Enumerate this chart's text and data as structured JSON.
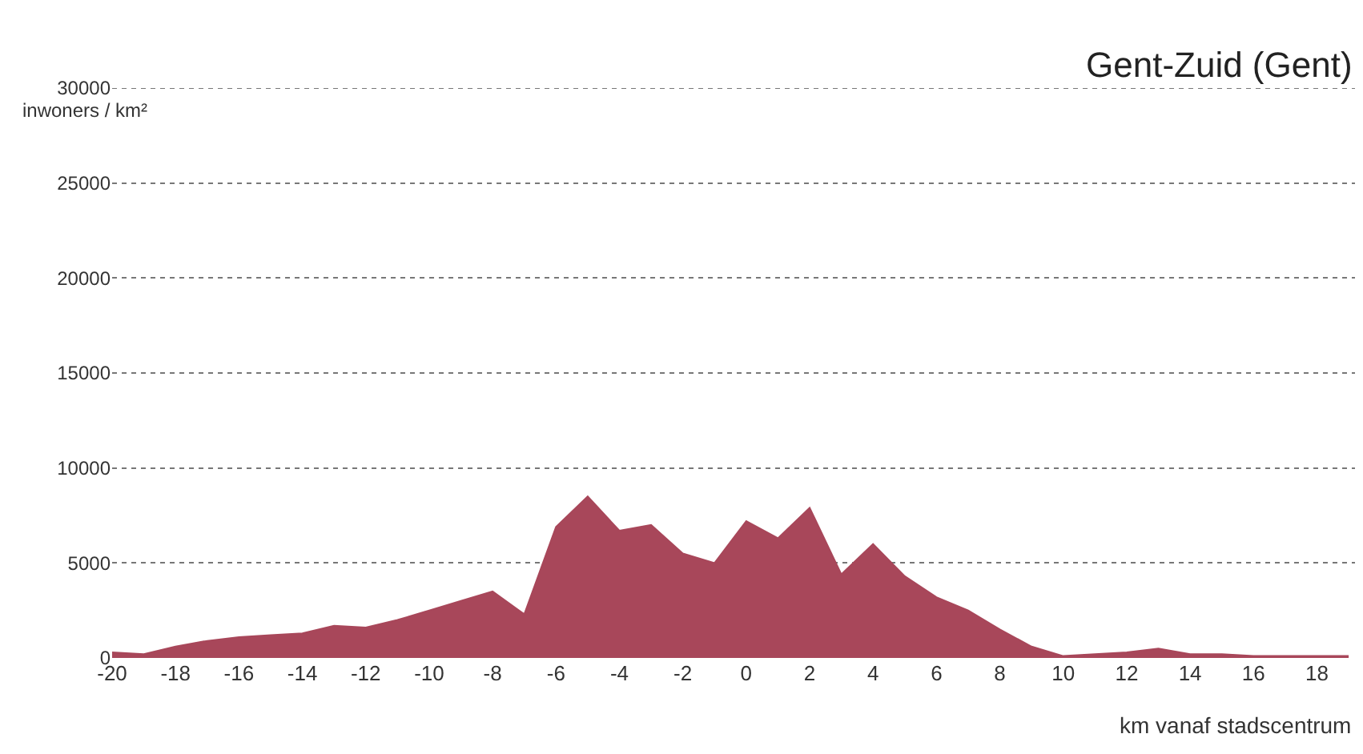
{
  "chart_data": {
    "type": "area",
    "title": "Gent-Zuid (Gent)",
    "xlabel": "km vanaf stadscentrum",
    "ylabel": "inwoners / km²",
    "x": [
      -20,
      -19,
      -18,
      -17,
      -16,
      -15,
      -14,
      -13,
      -12,
      -11,
      -10,
      -9,
      -8,
      -7,
      -6,
      -5,
      -4,
      -3,
      -2,
      -1,
      0,
      1,
      2,
      3,
      4,
      5,
      6,
      7,
      8,
      9,
      10,
      11,
      12,
      13,
      14,
      15,
      16,
      17,
      18,
      19
    ],
    "series": [
      {
        "color": "#a8475a",
        "values": [
          300,
          200,
          600,
          900,
          1100,
          1200,
          1300,
          1700,
          1600,
          2000,
          2500,
          3000,
          3500,
          2300,
          6900,
          8500,
          6700,
          7000,
          5500,
          5000,
          7200,
          6300,
          7900,
          4400,
          6000,
          4300,
          3200,
          2500,
          1500,
          600,
          100,
          200,
          300,
          500,
          200,
          200,
          100,
          100,
          100,
          100
        ]
      }
    ],
    "xlim": [
      -20,
      19.2
    ],
    "xticks": [
      -20,
      -18,
      -16,
      -14,
      -12,
      -10,
      -8,
      -6,
      -4,
      -2,
      0,
      2,
      4,
      6,
      8,
      10,
      12,
      14,
      16,
      18
    ],
    "ylim": [
      0,
      30000
    ],
    "yticks": [
      0,
      5000,
      10000,
      15000,
      20000,
      25000,
      30000
    ],
    "grid": "y"
  }
}
